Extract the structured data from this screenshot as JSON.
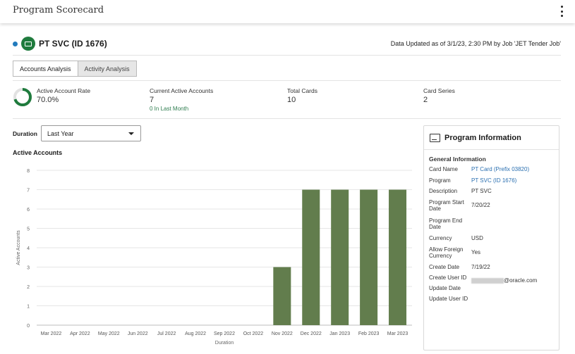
{
  "app": {
    "title": "Program Scorecard"
  },
  "program": {
    "name": "PT SVC (ID 1676)",
    "updated": "Data Updated as of 3/1/23, 2:30 PM by Job 'JET Tender Job'"
  },
  "tabs": [
    {
      "label": "Accounts Analysis",
      "active": true
    },
    {
      "label": "Activity Analysis",
      "active": false
    }
  ],
  "kpis": {
    "active_rate": {
      "label": "Active Account Rate",
      "value": "70.0%",
      "fraction": 0.7
    },
    "current_active": {
      "label": "Current Active Accounts",
      "value": "7",
      "sub": "0 In Last Month"
    },
    "total_cards": {
      "label": "Total Cards",
      "value": "10"
    },
    "card_series": {
      "label": "Card Series",
      "value": "2"
    }
  },
  "duration": {
    "label": "Duration",
    "selected": "Last Year"
  },
  "chart_title": "Active Accounts",
  "chart_data": {
    "type": "bar",
    "categories": [
      "Mar 2022",
      "Apr 2022",
      "May 2022",
      "Jun 2022",
      "Jul 2022",
      "Aug 2022",
      "Sep 2022",
      "Oct 2022",
      "Nov 2022",
      "Dec 2022",
      "Jan 2023",
      "Feb 2023",
      "Mar 2023"
    ],
    "values": [
      0,
      0,
      0,
      0,
      0,
      0,
      0,
      0,
      3,
      7,
      7,
      7,
      7
    ],
    "xlabel": "Duration",
    "ylabel": "Active Accounts",
    "ylim": [
      0,
      8
    ],
    "yticks": [
      "0",
      "1",
      "2",
      "3",
      "4",
      "5",
      "6",
      "7",
      "8"
    ],
    "grid": true,
    "bar_color": "#627d4d"
  },
  "info": {
    "title": "Program Information",
    "section": "General Information",
    "rows": [
      {
        "label": "Card Name",
        "value": "PT Card (Prefix 03820)",
        "link": true
      },
      {
        "label": "Program",
        "value": "PT SVC (ID 1676)",
        "link": true
      },
      {
        "label": "Description",
        "value": "PT SVC",
        "link": false
      },
      {
        "label": "Program Start Date",
        "value": "7/20/22",
        "link": false
      },
      {
        "label": "Program End Date",
        "value": "",
        "link": false
      },
      {
        "label": "Currency",
        "value": "USD",
        "link": false
      },
      {
        "label": "Allow Foreign Currency",
        "value": "Yes",
        "link": false
      },
      {
        "label": "Create Date",
        "value": "7/19/22",
        "link": false
      },
      {
        "label": "Create User ID",
        "value": "@oracle.com",
        "link": false,
        "redacted": true
      },
      {
        "label": "Update Date",
        "value": "",
        "link": false
      },
      {
        "label": "Update User ID",
        "value": "",
        "link": false
      }
    ]
  }
}
